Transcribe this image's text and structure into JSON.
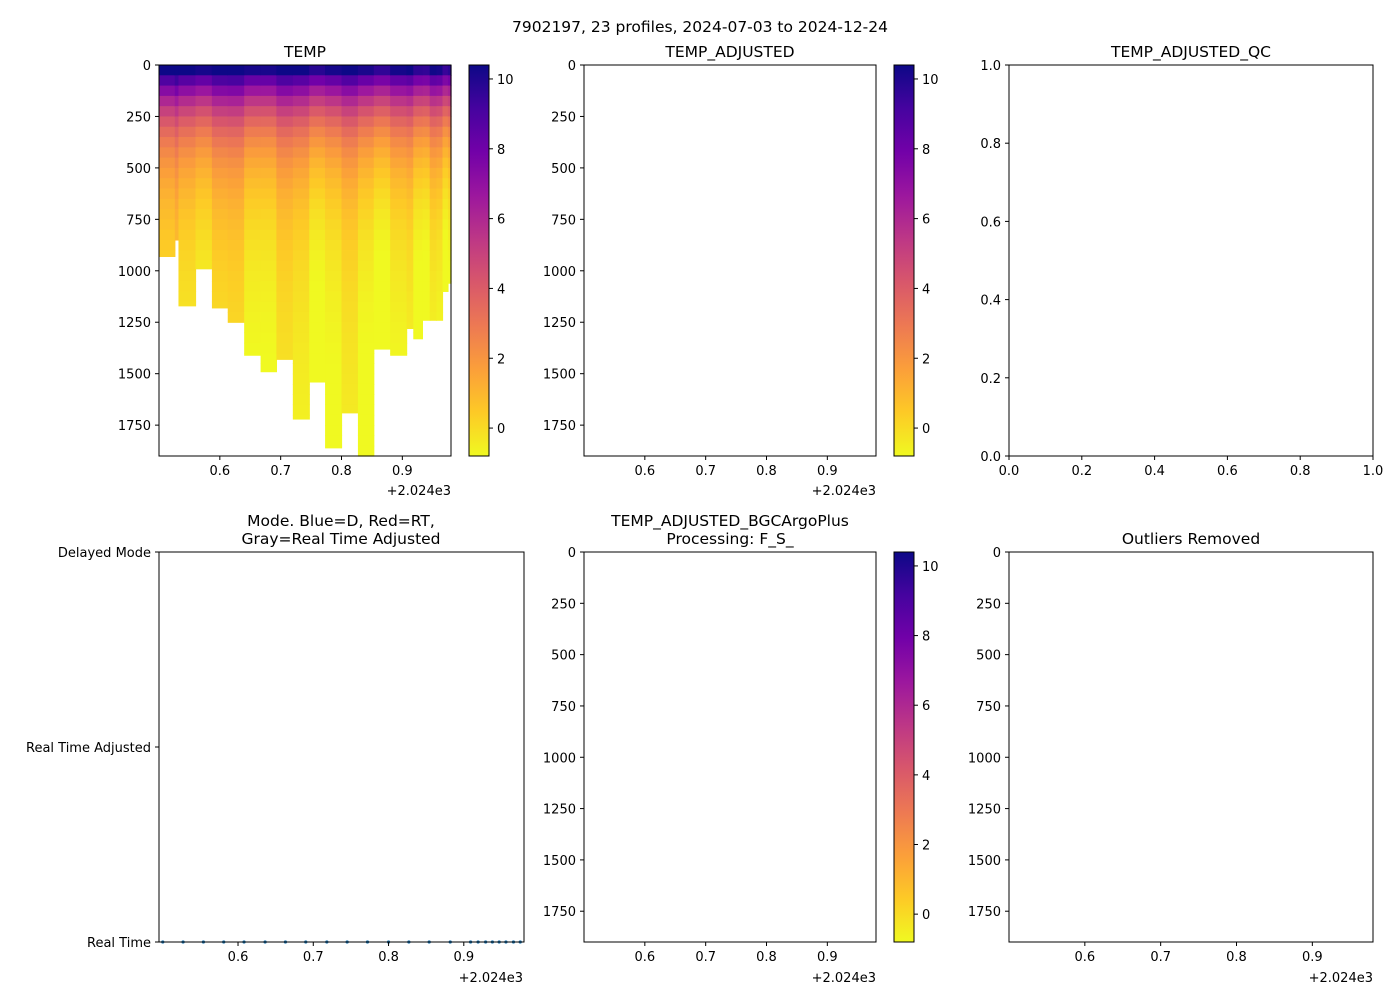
{
  "figure_title": "7902197, 23 profiles, 2024-07-03 to 2024-12-24",
  "colors": {
    "colormap_plasma_r": [
      "#f0f921",
      "#fdca26",
      "#fb9f3a",
      "#ed7953",
      "#d8576b",
      "#bd3786",
      "#9c179e",
      "#7201a8",
      "#46039f",
      "#0d0887"
    ],
    "mode_points": "#1f77b4"
  },
  "chart_data": [
    {
      "id": "temp",
      "type": "heatmap",
      "title": "TEMP",
      "x_ticks": [
        "0.6",
        "0.7",
        "0.8",
        "0.9"
      ],
      "x_tick_values": [
        0.6,
        0.7,
        0.8,
        0.9
      ],
      "x_offset_label": "+2.024e3",
      "xlim": [
        0.5,
        0.98
      ],
      "ylim": [
        1900,
        0
      ],
      "y_ticks": [
        "0",
        "250",
        "500",
        "750",
        "1000",
        "1250",
        "1500",
        "1750"
      ],
      "y_tick_values": [
        0,
        250,
        500,
        750,
        1000,
        1250,
        1500,
        1750
      ],
      "colorbar": {
        "range": [
          -0.8,
          10.4
        ],
        "ticks": [
          "0",
          "2",
          "4",
          "6",
          "8",
          "10"
        ],
        "tick_values": [
          0,
          2,
          4,
          6,
          8,
          10
        ]
      },
      "profiles": [
        {
          "x0": 0.5,
          "x1": 0.526,
          "max_depth": 930
        },
        {
          "x0": 0.526,
          "x1": 0.532,
          "max_depth": 850
        },
        {
          "x0": 0.532,
          "x1": 0.56,
          "max_depth": 1170
        },
        {
          "x0": 0.56,
          "x1": 0.587,
          "max_depth": 990
        },
        {
          "x0": 0.587,
          "x1": 0.613,
          "max_depth": 1180
        },
        {
          "x0": 0.613,
          "x1": 0.64,
          "max_depth": 1250
        },
        {
          "x0": 0.64,
          "x1": 0.667,
          "max_depth": 1410
        },
        {
          "x0": 0.667,
          "x1": 0.693,
          "max_depth": 1490
        },
        {
          "x0": 0.693,
          "x1": 0.72,
          "max_depth": 1430
        },
        {
          "x0": 0.72,
          "x1": 0.747,
          "max_depth": 1720
        },
        {
          "x0": 0.747,
          "x1": 0.773,
          "max_depth": 1540
        },
        {
          "x0": 0.773,
          "x1": 0.8,
          "max_depth": 1860
        },
        {
          "x0": 0.8,
          "x1": 0.827,
          "max_depth": 1690
        },
        {
          "x0": 0.827,
          "x1": 0.853,
          "max_depth": 1900
        },
        {
          "x0": 0.853,
          "x1": 0.88,
          "max_depth": 1380
        },
        {
          "x0": 0.88,
          "x1": 0.907,
          "max_depth": 1410
        },
        {
          "x0": 0.907,
          "x1": 0.918,
          "max_depth": 1280
        },
        {
          "x0": 0.918,
          "x1": 0.933,
          "max_depth": 1330
        },
        {
          "x0": 0.933,
          "x1": 0.945,
          "max_depth": 1240
        },
        {
          "x0": 0.945,
          "x1": 0.956,
          "max_depth": 1240
        },
        {
          "x0": 0.956,
          "x1": 0.966,
          "max_depth": 1240
        },
        {
          "x0": 0.966,
          "x1": 0.975,
          "max_depth": 1100
        },
        {
          "x0": 0.975,
          "x1": 0.98,
          "max_depth": 1060
        }
      ]
    },
    {
      "id": "temp_adjusted",
      "type": "heatmap",
      "title": "TEMP_ADJUSTED",
      "x_ticks": [
        "0.6",
        "0.7",
        "0.8",
        "0.9"
      ],
      "x_tick_values": [
        0.6,
        0.7,
        0.8,
        0.9
      ],
      "x_offset_label": "+2.024e3",
      "xlim": [
        0.5,
        0.98
      ],
      "ylim": [
        1900,
        0
      ],
      "y_ticks": [
        "0",
        "250",
        "500",
        "750",
        "1000",
        "1250",
        "1500",
        "1750"
      ],
      "y_tick_values": [
        0,
        250,
        500,
        750,
        1000,
        1250,
        1500,
        1750
      ],
      "colorbar": {
        "range": [
          -0.8,
          10.4
        ],
        "ticks": [
          "0",
          "2",
          "4",
          "6",
          "8",
          "10"
        ],
        "tick_values": [
          0,
          2,
          4,
          6,
          8,
          10
        ]
      },
      "profiles": []
    },
    {
      "id": "temp_adjusted_qc",
      "type": "scatter",
      "title": "TEMP_ADJUSTED_QC",
      "x_ticks": [
        "0.0",
        "0.2",
        "0.4",
        "0.6",
        "0.8",
        "1.0"
      ],
      "x_tick_values": [
        0,
        0.2,
        0.4,
        0.6,
        0.8,
        1.0
      ],
      "xlim": [
        0,
        1
      ],
      "ylim": [
        0,
        1
      ],
      "y_ticks": [
        "0.0",
        "0.2",
        "0.4",
        "0.6",
        "0.8",
        "1.0"
      ],
      "y_tick_values": [
        0,
        0.2,
        0.4,
        0.6,
        0.8,
        1.0
      ]
    },
    {
      "id": "mode",
      "type": "scatter",
      "title_lines": [
        "Mode. Blue=D, Red=RT,",
        "Gray=Real Time Adjusted"
      ],
      "x_ticks": [
        "0.6",
        "0.7",
        "0.8",
        "0.9"
      ],
      "x_tick_values": [
        0.6,
        0.7,
        0.8,
        0.9
      ],
      "x_offset_label": "+2.024e3",
      "xlim": [
        0.495,
        0.98
      ],
      "ylim": [
        0,
        2
      ],
      "y_categories": [
        "Real Time",
        "Real Time Adjusted",
        "Delayed Mode"
      ],
      "points_x": [
        0.5,
        0.527,
        0.554,
        0.581,
        0.608,
        0.636,
        0.663,
        0.69,
        0.718,
        0.745,
        0.772,
        0.8,
        0.827,
        0.854,
        0.882,
        0.909,
        0.919,
        0.929,
        0.938,
        0.947,
        0.956,
        0.966,
        0.975
      ],
      "points_y": 0
    },
    {
      "id": "bgcargoplus",
      "type": "heatmap",
      "title_lines": [
        "TEMP_ADJUSTED_BGCArgoPlus",
        "Processing: F_S_"
      ],
      "x_ticks": [
        "0.6",
        "0.7",
        "0.8",
        "0.9"
      ],
      "x_tick_values": [
        0.6,
        0.7,
        0.8,
        0.9
      ],
      "x_offset_label": "+2.024e3",
      "xlim": [
        0.5,
        0.98
      ],
      "ylim": [
        1900,
        0
      ],
      "y_ticks": [
        "0",
        "250",
        "500",
        "750",
        "1000",
        "1250",
        "1500",
        "1750"
      ],
      "y_tick_values": [
        0,
        250,
        500,
        750,
        1000,
        1250,
        1500,
        1750
      ],
      "colorbar": {
        "range": [
          -0.8,
          10.4
        ],
        "ticks": [
          "0",
          "2",
          "4",
          "6",
          "8",
          "10"
        ],
        "tick_values": [
          0,
          2,
          4,
          6,
          8,
          10
        ]
      },
      "profiles": []
    },
    {
      "id": "outliers",
      "type": "scatter",
      "title": "Outliers Removed",
      "x_ticks": [
        "0.6",
        "0.7",
        "0.8",
        "0.9"
      ],
      "x_tick_values": [
        0.6,
        0.7,
        0.8,
        0.9
      ],
      "x_offset_label": "+2.024e3",
      "xlim": [
        0.5,
        0.98
      ],
      "ylim": [
        1900,
        0
      ],
      "y_ticks": [
        "0",
        "250",
        "500",
        "750",
        "1000",
        "1250",
        "1500",
        "1750"
      ],
      "y_tick_values": [
        0,
        250,
        500,
        750,
        1000,
        1250,
        1500,
        1750
      ]
    }
  ]
}
